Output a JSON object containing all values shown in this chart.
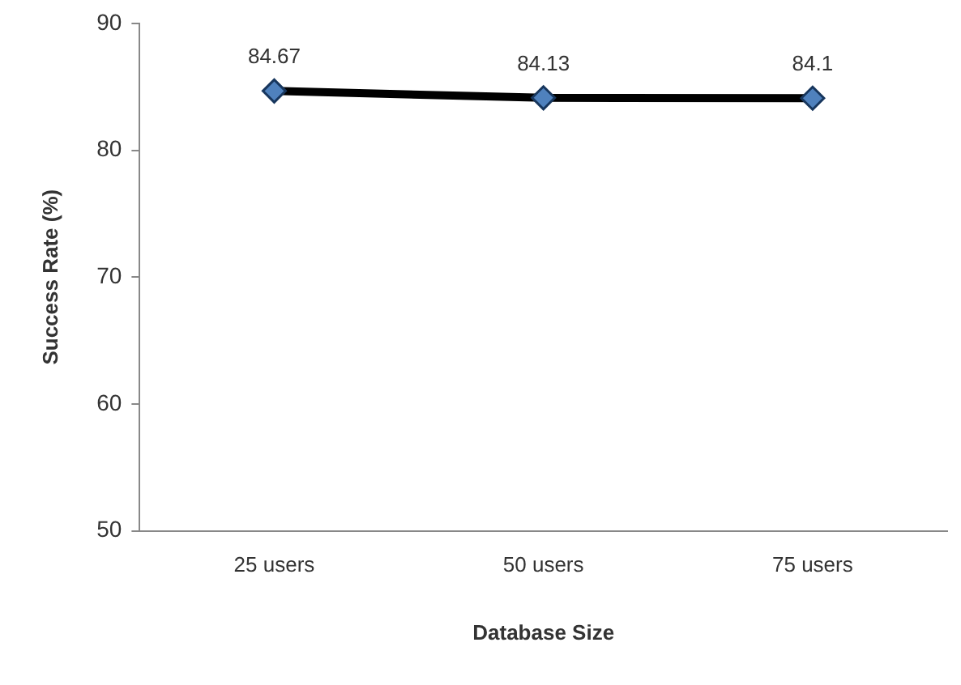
{
  "chart_data": {
    "type": "line",
    "xlabel": "Database Size",
    "ylabel": "Success Rate (%)",
    "categories": [
      "25 users",
      "50 users",
      "75 users"
    ],
    "series": [
      {
        "color": "#000000",
        "values": [
          84.67,
          84.13,
          84.1
        ]
      }
    ],
    "ylim": [
      50,
      90
    ],
    "yticks": [
      50,
      60,
      70,
      80,
      90
    ],
    "grid": false,
    "legend": false,
    "marker": "diamond",
    "line_style": "solid",
    "data_labels": true
  }
}
